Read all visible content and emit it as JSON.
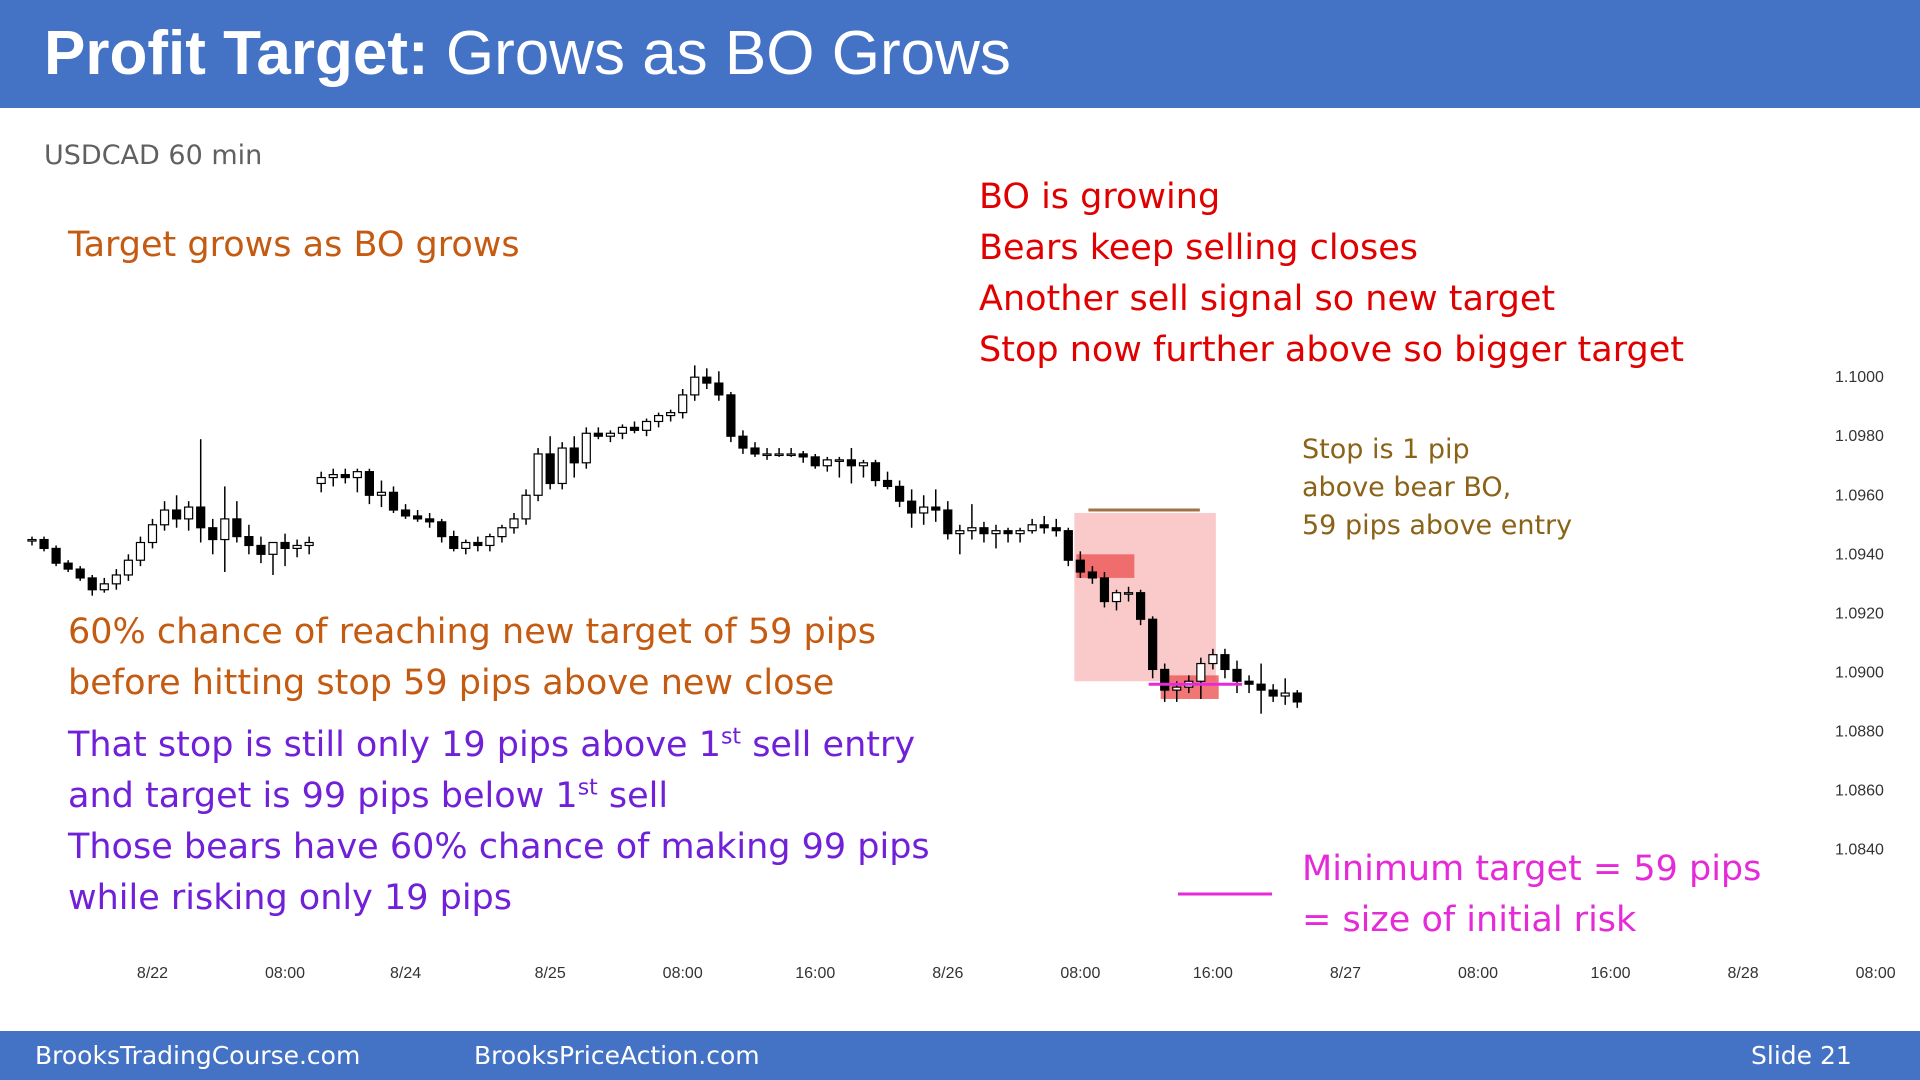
{
  "slide": {
    "title_bold": "Profit Target:",
    "title_rest": " Grows as BO Grows",
    "subtitle": "USDCAD 60 min",
    "slide_number": "Slide  21"
  },
  "footer": {
    "left": "BrooksTradingCourse.com",
    "center": "BrooksPriceAction.com"
  },
  "notes": {
    "target_grows": "Target grows as BO grows",
    "red": [
      "BO is growing",
      "Bears keep selling closes",
      "Another sell signal so new target",
      "Stop now further above so bigger target"
    ],
    "orange": [
      "60% chance of reaching new target of 59 pips",
      "before hitting stop 59 pips above new close"
    ],
    "purple_1a": "That stop is still only 19 pips above 1",
    "purple_1b": " sell entry",
    "purple_2a": "and target is 99 pips below 1",
    "purple_2b": " sell",
    "sup_st": "st",
    "purple_3": "Those bears have 60% chance of making 99 pips",
    "purple_4": "while risking only 19 pips",
    "stop": [
      "Stop is 1 pip",
      "above bear BO,",
      "59 pips above entry"
    ],
    "min_target": [
      "Minimum target = 59 pips",
      "= size of initial risk"
    ]
  },
  "colors": {
    "header": "#4472c4",
    "bull_body": "#ffffff",
    "bear_body": "#000000",
    "risk_zone": "#f8b4b4",
    "entry_box": "#ee5555",
    "target_line": "#e52ad8",
    "stop_line": "#a0724a"
  },
  "chart_data": {
    "type": "candlestick",
    "y_ticks": [
      "1.1000",
      "1.0980",
      "1.0960",
      "1.0940",
      "1.0920",
      "1.0900",
      "1.0880",
      "1.0860",
      "1.0840"
    ],
    "y_tick_values": [
      1.1,
      1.098,
      1.096,
      1.094,
      1.092,
      1.09,
      1.088,
      1.086,
      1.084
    ],
    "ylim": [
      1.0829,
      1.1017
    ],
    "x_tick_labels": [
      "8/22",
      "08:00",
      "8/24",
      "8/25",
      "08:00",
      "16:00",
      "8/26",
      "08:00",
      "16:00",
      "8/27",
      "08:00",
      "16:00",
      "8/28",
      "08:00"
    ],
    "x_tick_bar_index": [
      10,
      21,
      31,
      43,
      54,
      65,
      76,
      87,
      98,
      109,
      120,
      131,
      142,
      153
    ],
    "bars": [
      [
        1.0945,
        1.0946,
        1.0943,
        1.0945
      ],
      [
        1.0945,
        1.0946,
        1.0941,
        1.0942
      ],
      [
        1.0942,
        1.0943,
        1.0936,
        1.0937
      ],
      [
        1.0937,
        1.0938,
        1.0934,
        1.0935
      ],
      [
        1.0935,
        1.0936,
        1.0931,
        1.0932
      ],
      [
        1.0932,
        1.0933,
        1.0926,
        1.0928
      ],
      [
        1.0928,
        1.0932,
        1.0927,
        1.093
      ],
      [
        1.093,
        1.0935,
        1.0928,
        1.0933
      ],
      [
        1.0933,
        1.094,
        1.0931,
        1.0938
      ],
      [
        1.0938,
        1.0946,
        1.0936,
        1.0944
      ],
      [
        1.0944,
        1.0952,
        1.0942,
        1.095
      ],
      [
        1.095,
        1.0958,
        1.0948,
        1.0955
      ],
      [
        1.0955,
        1.096,
        1.0949,
        1.0952
      ],
      [
        1.0952,
        1.0958,
        1.0948,
        1.0956
      ],
      [
        1.0956,
        1.0979,
        1.0944,
        1.0949
      ],
      [
        1.0949,
        1.0952,
        1.094,
        1.0945
      ],
      [
        1.0945,
        1.0963,
        1.0934,
        1.0952
      ],
      [
        1.0952,
        1.0958,
        1.0944,
        1.0946
      ],
      [
        1.0946,
        1.095,
        1.094,
        1.0943
      ],
      [
        1.0943,
        1.0946,
        1.0937,
        1.094
      ],
      [
        1.094,
        1.0944,
        1.0933,
        1.0944
      ],
      [
        1.0944,
        1.0947,
        1.0936,
        1.0942
      ],
      [
        1.0942,
        1.0945,
        1.0939,
        1.0943
      ],
      [
        1.0943,
        1.0946,
        1.094,
        1.0944
      ],
      [
        1.0964,
        1.0968,
        1.0961,
        1.0966
      ],
      [
        1.0966,
        1.0969,
        1.0963,
        1.0967
      ],
      [
        1.0967,
        1.0969,
        1.0964,
        1.0966
      ],
      [
        1.0966,
        1.0969,
        1.0961,
        1.0968
      ],
      [
        1.0968,
        1.0969,
        1.0957,
        1.096
      ],
      [
        1.096,
        1.0965,
        1.0956,
        1.0961
      ],
      [
        1.0961,
        1.0963,
        1.0954,
        1.0955
      ],
      [
        1.0955,
        1.0957,
        1.0952,
        1.0953
      ],
      [
        1.0953,
        1.0955,
        1.0951,
        1.0952
      ],
      [
        1.0952,
        1.0954,
        1.0949,
        1.0951
      ],
      [
        1.0951,
        1.0952,
        1.0944,
        1.0946
      ],
      [
        1.0946,
        1.0948,
        1.0941,
        1.0942
      ],
      [
        1.0942,
        1.0945,
        1.094,
        1.0944
      ],
      [
        1.0944,
        1.0946,
        1.0941,
        1.0943
      ],
      [
        1.0943,
        1.0947,
        1.0941,
        1.0946
      ],
      [
        1.0946,
        1.095,
        1.0944,
        1.0949
      ],
      [
        1.0949,
        1.0954,
        1.0947,
        1.0952
      ],
      [
        1.0952,
        1.0962,
        1.095,
        1.096
      ],
      [
        1.096,
        1.0976,
        1.0958,
        1.0974
      ],
      [
        1.0974,
        1.098,
        1.0962,
        1.0964
      ],
      [
        1.0964,
        1.0978,
        1.0962,
        1.0976
      ],
      [
        1.0976,
        1.098,
        1.0966,
        1.0971
      ],
      [
        1.0971,
        1.0983,
        1.0969,
        1.0981
      ],
      [
        1.0981,
        1.0983,
        1.0979,
        1.098
      ],
      [
        1.098,
        1.0982,
        1.0978,
        1.0981
      ],
      [
        1.0981,
        1.0984,
        1.0979,
        1.0983
      ],
      [
        1.0983,
        1.0985,
        1.0981,
        1.0982
      ],
      [
        1.0982,
        1.0986,
        1.098,
        1.0985
      ],
      [
        1.0985,
        1.0988,
        1.0983,
        1.0987
      ],
      [
        1.0987,
        1.0989,
        1.0985,
        1.0988
      ],
      [
        1.0988,
        1.0996,
        1.0986,
        1.0994
      ],
      [
        1.0994,
        1.1004,
        1.0992,
        1.1
      ],
      [
        1.1,
        1.1003,
        1.0996,
        1.0998
      ],
      [
        1.0998,
        1.1002,
        1.0992,
        1.0994
      ],
      [
        1.0994,
        1.0995,
        1.0978,
        1.098
      ],
      [
        1.098,
        1.0982,
        1.0974,
        1.0976
      ],
      [
        1.0976,
        1.0978,
        1.0973,
        1.0974
      ],
      [
        1.0974,
        1.0976,
        1.0972,
        1.0974
      ],
      [
        1.0974,
        1.0976,
        1.0973,
        1.0974
      ],
      [
        1.0974,
        1.0976,
        1.0973,
        1.0974
      ],
      [
        1.0974,
        1.0975,
        1.0971,
        1.0973
      ],
      [
        1.0973,
        1.0974,
        1.0969,
        1.097
      ],
      [
        1.097,
        1.0973,
        1.0968,
        1.0972
      ],
      [
        1.0972,
        1.0973,
        1.0966,
        1.0972
      ],
      [
        1.0972,
        1.0976,
        1.0964,
        1.097
      ],
      [
        1.097,
        1.0972,
        1.0966,
        1.0971
      ],
      [
        1.0971,
        1.0972,
        1.0963,
        1.0965
      ],
      [
        1.0965,
        1.0968,
        1.0962,
        1.0963
      ],
      [
        1.0963,
        1.0965,
        1.0956,
        1.0958
      ],
      [
        1.0958,
        1.0962,
        1.0949,
        1.0954
      ],
      [
        1.0954,
        1.096,
        1.095,
        1.0956
      ],
      [
        1.0956,
        1.0962,
        1.0951,
        1.0955
      ],
      [
        1.0955,
        1.0958,
        1.0945,
        1.0947
      ],
      [
        1.0947,
        1.095,
        1.094,
        1.0948
      ],
      [
        1.0948,
        1.0957,
        1.0945,
        1.0949
      ],
      [
        1.0949,
        1.0951,
        1.0944,
        1.0947
      ],
      [
        1.0947,
        1.095,
        1.0942,
        1.0948
      ],
      [
        1.0948,
        1.0949,
        1.0944,
        1.0947
      ],
      [
        1.0947,
        1.0949,
        1.0944,
        1.0948
      ],
      [
        1.0948,
        1.0952,
        1.0947,
        1.095
      ],
      [
        1.095,
        1.0953,
        1.0947,
        1.0949
      ],
      [
        1.0949,
        1.0952,
        1.0946,
        1.0948
      ],
      [
        1.0948,
        1.0949,
        1.0936,
        1.0938
      ],
      [
        1.0938,
        1.0941,
        1.0932,
        1.0934
      ],
      [
        1.0934,
        1.0936,
        1.093,
        1.0932
      ],
      [
        1.0932,
        1.0934,
        1.0922,
        1.0924
      ],
      [
        1.0924,
        1.0928,
        1.0921,
        1.0927
      ],
      [
        1.0927,
        1.0929,
        1.0924,
        1.0927
      ],
      [
        1.0927,
        1.0928,
        1.0916,
        1.0918
      ],
      [
        1.0918,
        1.0919,
        1.0898,
        1.0901
      ],
      [
        1.0901,
        1.0903,
        1.089,
        1.0894
      ],
      [
        1.0894,
        1.0897,
        1.089,
        1.0895
      ],
      [
        1.0895,
        1.0899,
        1.0893,
        1.0897
      ],
      [
        1.0897,
        1.0905,
        1.0891,
        1.0903
      ],
      [
        1.0903,
        1.0908,
        1.0901,
        1.0906
      ],
      [
        1.0906,
        1.0908,
        1.0898,
        1.0901
      ],
      [
        1.0901,
        1.0904,
        1.0893,
        1.0897
      ],
      [
        1.0897,
        1.0899,
        1.0893,
        1.0896
      ],
      [
        1.0896,
        1.0903,
        1.0886,
        1.0894
      ],
      [
        1.0894,
        1.0896,
        1.089,
        1.0892
      ],
      [
        1.0892,
        1.0898,
        1.0889,
        1.0893
      ],
      [
        1.0893,
        1.0894,
        1.0888,
        1.089
      ]
    ],
    "annotations": {
      "risk_zone": [
        1.0897,
        1.0954
      ],
      "stop_line": 1.0955,
      "target_line": 1.0896,
      "entry_box_1": [
        1.0932,
        1.094
      ],
      "entry_box_2": [
        1.0891,
        1.0899
      ]
    }
  }
}
